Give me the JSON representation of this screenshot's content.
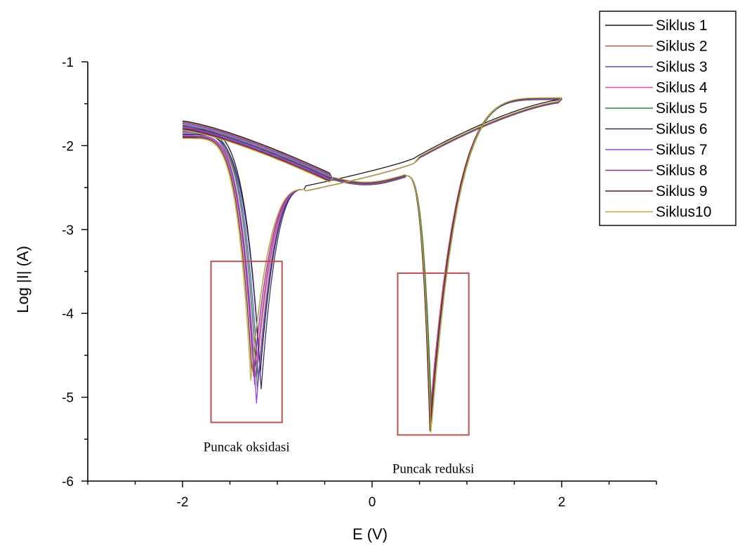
{
  "chart_data": {
    "type": "line",
    "xlabel": "E (V)",
    "ylabel": "Log |I| (A)",
    "xlim": [
      -3,
      3
    ],
    "ylim": [
      -6,
      -1
    ],
    "xticks": [
      -2,
      0,
      2
    ],
    "yticks": [
      -6,
      -5,
      -4,
      -3,
      -2,
      -1
    ],
    "legend_position": "top-right",
    "grid": false,
    "annotations": [
      {
        "label": "Puncak oksidasi",
        "x_range": [
          -1.7,
          -0.95
        ],
        "y_range": [
          -5.3,
          -3.38
        ]
      },
      {
        "label": "Puncak reduksi",
        "x_range": [
          0.27,
          1.02
        ],
        "y_range": [
          -5.45,
          -3.52
        ]
      }
    ],
    "series": [
      {
        "name": "Siklus 1",
        "color": "#1a1a1a",
        "ox_peak": [
          -1.18,
          -4.7
        ],
        "red_peak": [
          0.62,
          -5.1
        ]
      },
      {
        "name": "Siklus 2",
        "color": "#b05a4a",
        "ox_peak": [
          -1.22,
          -4.75
        ],
        "red_peak": [
          0.61,
          -5.2
        ]
      },
      {
        "name": "Siklus 3",
        "color": "#5050c0",
        "ox_peak": [
          -1.2,
          -4.8
        ],
        "red_peak": [
          0.62,
          -5.25
        ]
      },
      {
        "name": "Siklus 4",
        "color": "#e040e0",
        "ox_peak": [
          -1.24,
          -4.85
        ],
        "red_peak": [
          0.61,
          -5.3
        ]
      },
      {
        "name": "Siklus 5",
        "color": "#2e8b3a",
        "ox_peak": [
          -1.21,
          -4.9
        ],
        "red_peak": [
          0.63,
          -5.3
        ]
      },
      {
        "name": "Siklus 6",
        "color": "#30307a",
        "ox_peak": [
          -1.17,
          -4.9
        ],
        "red_peak": [
          0.62,
          -5.35
        ]
      },
      {
        "name": "Siklus 7",
        "color": "#9a40e0",
        "ox_peak": [
          -1.22,
          -5.07
        ],
        "red_peak": [
          0.61,
          -5.35
        ]
      },
      {
        "name": "Siklus 8",
        "color": "#903080",
        "ox_peak": [
          -1.25,
          -4.75
        ],
        "red_peak": [
          0.62,
          -5.38
        ]
      },
      {
        "name": "Siklus 9",
        "color": "#6a1a1a",
        "ox_peak": [
          -1.27,
          -4.7
        ],
        "red_peak": [
          0.61,
          -5.4
        ]
      },
      {
        "name": "Siklus10",
        "color": "#b8b040",
        "ox_peak": [
          -1.28,
          -4.8
        ],
        "red_peak": [
          0.62,
          -5.42
        ]
      }
    ]
  }
}
